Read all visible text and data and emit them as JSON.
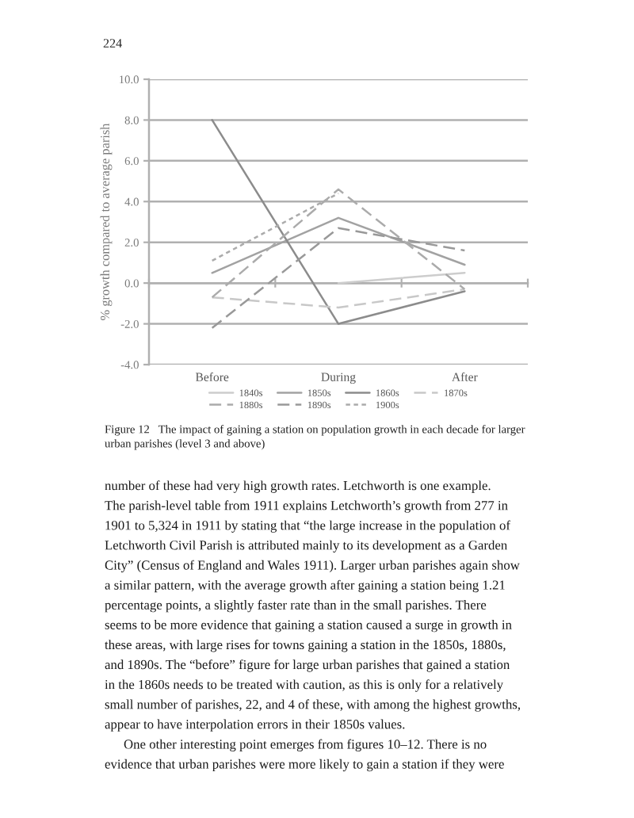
{
  "chart_data": {
    "type": "line",
    "title": "Figure 12   The impact of gaining a station on population growth in each decade for larger\nurban parishes (level 3 and above)",
    "ylabel": "% growth compared to average parish",
    "categories": [
      "Before",
      "During",
      "After"
    ],
    "series": [
      {
        "name": "1840s",
        "color": "#cdcdcd",
        "line_style": "solid",
        "values": [
          null,
          0.0,
          0.5
        ]
      },
      {
        "name": "1850s",
        "color": "#a2a2a2",
        "line_style": "solid",
        "values": [
          0.5,
          3.2,
          0.9
        ]
      },
      {
        "name": "1860s",
        "color": "#8c8c8c",
        "line_style": "solid",
        "values": [
          8.0,
          -2.0,
          -0.4
        ]
      },
      {
        "name": "1870s",
        "color": "#c8c8c8",
        "line_style": "dashed",
        "values": [
          -0.7,
          -1.2,
          -0.3
        ]
      },
      {
        "name": "1880s",
        "color": "#ababab",
        "line_style": "dashed",
        "values": [
          -0.7,
          4.6,
          -0.3
        ]
      },
      {
        "name": "1890s",
        "color": "#999999",
        "line_style": "dashed",
        "values": [
          -2.2,
          2.7,
          1.6
        ]
      },
      {
        "name": "1900s",
        "color": "#ababab",
        "line_style": "dotted",
        "values": [
          1.1,
          4.4,
          null
        ]
      }
    ],
    "ylim": [
      -4,
      10
    ],
    "yticks": [
      {
        "value": -4,
        "label": "-4.0"
      },
      {
        "value": -2,
        "label": "-2.0"
      },
      {
        "value": 0,
        "label": "0.0"
      },
      {
        "value": 2,
        "label": "2.0"
      },
      {
        "value": 4,
        "label": "4.0"
      },
      {
        "value": 6,
        "label": "6.0"
      },
      {
        "value": 8,
        "label": "8.0"
      },
      {
        "value": 10,
        "label": "10.0"
      }
    ],
    "grid": "y",
    "legend": "bottom",
    "annotations": [
      "224",
      "number of these had very high growth rates. Letchworth is one example.\nThe parish-level table from 1911 explains Letchworth’s growth from 277 in\n1901 to 5,324 in 1911 by stating that “the large increase in the population of\nLetchworth Civil Parish is attributed mainly to its development as a Garden\nCity” (Census of England and Wales 1911). Larger urban parishes again show\na similar pattern, with the average growth after gaining a station being 1.21\npercentage points, a slightly faster rate than in the small parishes. There\nseems to be more evidence that gaining a station caused a surge in growth in\nthese areas, with large rises for towns gaining a station in the 1850s, 1880s,\nand 1890s. The “before” figure for large urban parishes that gained a station\nin the 1860s needs to be treated with caution, as this is only for a relatively\nsmall number of parishes, 22, and 4 of these, with among the highest growths,\nappear to have interpolation errors in their 1850s values.",
      "One other interesting point emerges from figures 10–12. There is no\nevidence that urban parishes were more likely to gain a station if they were"
    ]
  }
}
